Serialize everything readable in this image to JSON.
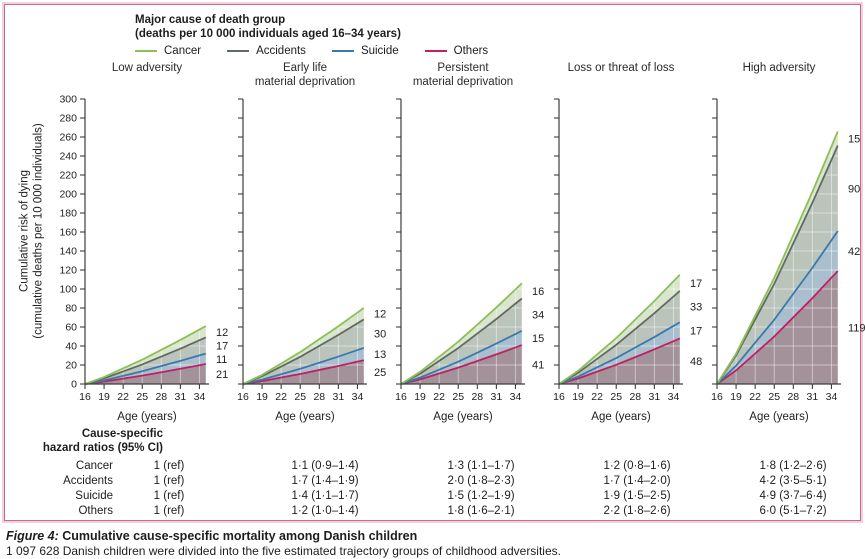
{
  "legend": {
    "title_line1": "Major cause of death group",
    "title_line2": "(deaths per 10 000 individuals aged 16–34 years)",
    "items": [
      {
        "label": "Cancer",
        "color": "#8cbf57"
      },
      {
        "label": "Accidents",
        "color": "#606b62"
      },
      {
        "label": "Suicide",
        "color": "#3a79ac"
      },
      {
        "label": "Others",
        "color": "#c02060"
      }
    ]
  },
  "axes": {
    "y_title_line1": "Cumulative risk of dying",
    "y_title_line2": "(cumulative deaths per 10 000 individuals)",
    "x_title": "Age (years)",
    "ylim": [
      0,
      300
    ],
    "xlim": [
      16,
      35.5
    ],
    "y_ticks": [
      0,
      20,
      40,
      60,
      80,
      100,
      120,
      140,
      160,
      180,
      200,
      220,
      240,
      260,
      280,
      300
    ],
    "x_ticks": [
      16,
      19,
      22,
      25,
      28,
      31,
      34
    ],
    "grid": "faint white gridlines over shaded areas"
  },
  "chart_data": {
    "type": "area",
    "stacked": true,
    "ages": [
      16,
      19,
      22,
      25,
      28,
      31,
      34,
      35
    ],
    "series_order_bottom_to_top": [
      "others",
      "suicide",
      "accidents",
      "cancer"
    ],
    "colors": {
      "line": {
        "cancer": "#8cbf57",
        "accidents": "#606b62",
        "suicide": "#3a79ac",
        "others": "#c02060"
      },
      "band": {
        "cancer": "#d9e5cd",
        "accidents": "#bac4ba",
        "suicide": "#a9bfcd",
        "others": "#a3929a"
      }
    },
    "panels": [
      {
        "title_line1": "Low adversity",
        "title_line2": "",
        "show_y_tick_labels": true,
        "cum": {
          "others": [
            0,
            2.5,
            5.7,
            8.8,
            12.4,
            16.0,
            19.7,
            21
          ],
          "suicide": [
            0,
            3.8,
            8.6,
            13.4,
            18.9,
            24.3,
            30.1,
            32
          ],
          "accidents": [
            0,
            5.9,
            13.2,
            20.6,
            28.9,
            37.2,
            46.1,
            49
          ],
          "cancer": [
            0,
            7.3,
            16.5,
            25.6,
            36.0,
            46.4,
            57.3,
            61
          ]
        },
        "annotations": {
          "cancer": "12",
          "accidents": "17",
          "suicide": "11",
          "others": "21"
        }
      },
      {
        "title_line1": "Early life",
        "title_line2": "material deprivation",
        "show_y_tick_labels": false,
        "cum": {
          "others": [
            0,
            3.0,
            6.8,
            10.5,
            14.8,
            19.0,
            23.5,
            25
          ],
          "suicide": [
            0,
            4.6,
            10.3,
            16.0,
            22.4,
            28.9,
            35.7,
            38
          ],
          "accidents": [
            0,
            8.2,
            18.4,
            28.6,
            40.1,
            51.7,
            63.9,
            68
          ],
          "cancer": [
            0,
            9.6,
            21.6,
            33.6,
            47.2,
            60.8,
            75.2,
            80
          ]
        },
        "annotations": {
          "cancer": "12",
          "accidents": "30",
          "suicide": "13",
          "others": "25"
        }
      },
      {
        "title_line1": "Persistent",
        "title_line2": "material deprivation",
        "show_y_tick_labels": false,
        "cum": {
          "others": [
            0,
            4.9,
            11.1,
            17.2,
            24.2,
            31.2,
            38.5,
            41
          ],
          "suicide": [
            0,
            6.7,
            15.1,
            23.5,
            33.0,
            42.6,
            52.6,
            56
          ],
          "accidents": [
            0,
            10.8,
            24.3,
            37.8,
            53.1,
            68.4,
            84.6,
            90
          ],
          "cancer": [
            0,
            12.7,
            28.6,
            44.5,
            62.5,
            80.6,
            99.6,
            106
          ]
        },
        "annotations": {
          "cancer": "16",
          "accidents": "34",
          "suicide": "15",
          "others": "41"
        }
      },
      {
        "title_line1": "Loss or threat of loss",
        "title_line2": "",
        "show_y_tick_labels": false,
        "cum": {
          "others": [
            0,
            5.8,
            13.0,
            20.2,
            28.3,
            36.5,
            45.1,
            48
          ],
          "suicide": [
            0,
            7.8,
            17.6,
            27.3,
            38.4,
            49.4,
            61.1,
            65
          ],
          "accidents": [
            0,
            11.8,
            26.5,
            41.2,
            57.8,
            74.5,
            92.1,
            98
          ],
          "cancer": [
            0,
            13.8,
            31.1,
            48.3,
            67.9,
            87.4,
            108.1,
            115
          ]
        },
        "annotations": {
          "cancer": "17",
          "accidents": "33",
          "suicide": "17",
          "others": "48"
        }
      },
      {
        "title_line1": "High adversity",
        "title_line2": "",
        "show_y_tick_labels": false,
        "cum": {
          "others": [
            0,
            14.3,
            32.1,
            50.0,
            70.2,
            90.4,
            111.9,
            119
          ],
          "suicide": [
            0,
            19.3,
            43.5,
            67.6,
            95.0,
            122.4,
            151.3,
            161
          ],
          "accidents": [
            0,
            30.1,
            67.8,
            105.4,
            148.1,
            190.8,
            235.9,
            251
          ],
          "cancer": [
            0,
            31.9,
            71.8,
            111.7,
            156.9,
            202.2,
            250.0,
            266
          ]
        },
        "annotations": {
          "cancer": "15",
          "accidents": "90",
          "suicide": "42",
          "others": "119"
        }
      }
    ]
  },
  "hazard_table": {
    "header_line1": "Cause-specific",
    "header_line2": "hazard ratios (95% CI)",
    "rows": [
      {
        "label": "Cancer",
        "values": [
          "1 (ref)",
          "1·1 (0·9–1·4)",
          "1·3 (1·1–1·7)",
          "1·2 (0·8–1·6)",
          "1·8 (1·2–2·6)"
        ]
      },
      {
        "label": "Accidents",
        "values": [
          "1 (ref)",
          "1·7 (1·4–1·9)",
          "2·0 (1·8–2·3)",
          "1·7 (1·4–2·0)",
          "4·2 (3·5–5·1)"
        ]
      },
      {
        "label": "Suicide",
        "values": [
          "1 (ref)",
          "1·4 (1·1–1·7)",
          "1·5 (1·2–1·9)",
          "1·9 (1·5–2·5)",
          "4·9 (3·7–6·4)"
        ]
      },
      {
        "label": "Others",
        "values": [
          "1 (ref)",
          "1·2 (1·0–1·4)",
          "1·8 (1·6–2·1)",
          "2·2 (1·8–2·6)",
          "6·0 (5·1–7·2)"
        ]
      }
    ]
  },
  "caption": {
    "figure_label": "Figure 4:",
    "figure_title": " Cumulative cause-specific mortality among Danish children",
    "note": "1 097 628 Danish children were divided into the five estimated trajectory groups of childhood adversities."
  }
}
